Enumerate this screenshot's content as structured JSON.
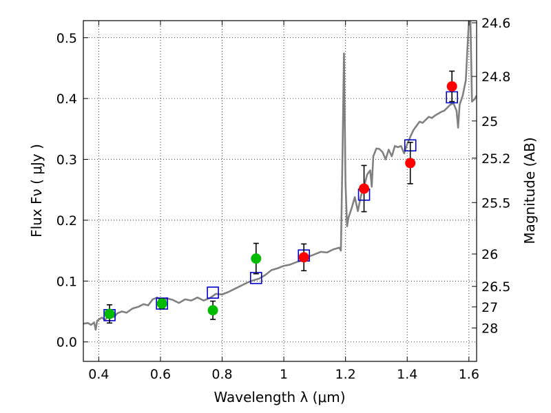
{
  "chart_data": {
    "type": "scatter",
    "title": "",
    "xlabel": "Wavelength  λ (μm)",
    "ylabel": "Flux  Fν  ( μJy )",
    "y2label": "Magnitude (AB)",
    "xlim": [
      0.35,
      1.625
    ],
    "ylim": [
      -0.032,
      0.528
    ],
    "grid": true,
    "legend": "none",
    "xticks": [
      {
        "value": 0.4,
        "label": "0.4"
      },
      {
        "value": 0.6,
        "label": "0.6"
      },
      {
        "value": 0.8,
        "label": "0.8"
      },
      {
        "value": 1.0,
        "label": "1"
      },
      {
        "value": 1.2,
        "label": "1.2"
      },
      {
        "value": 1.4,
        "label": "1.4"
      },
      {
        "value": 1.6,
        "label": "1.6"
      }
    ],
    "yticks": [
      {
        "value": 0.0,
        "label": "0.0"
      },
      {
        "value": 0.1,
        "label": "0.1"
      },
      {
        "value": 0.2,
        "label": "0.2"
      },
      {
        "value": 0.3,
        "label": "0.3"
      },
      {
        "value": 0.4,
        "label": "0.4"
      },
      {
        "value": 0.5,
        "label": "0.5"
      }
    ],
    "y2ticks": [
      {
        "label": "24.6",
        "flux": 0.5245
      },
      {
        "label": "24.8",
        "flux": 0.4363
      },
      {
        "label": "25",
        "flux": 0.3631
      },
      {
        "label": "25.2",
        "flux": 0.302
      },
      {
        "label": "25.5",
        "flux": 0.229
      },
      {
        "label": "26",
        "flux": 0.1445
      },
      {
        "label": "26.5",
        "flux": 0.0912
      },
      {
        "label": "27",
        "flux": 0.0575
      },
      {
        "label": "28",
        "flux": 0.0229
      }
    ],
    "colors": {
      "spectrum": "#808080",
      "model": "#0000cc",
      "green": "#00bb00",
      "red": "#ff0000",
      "errorbar": "#000000",
      "grid": "#000000"
    },
    "series": [
      {
        "type": "line",
        "points": [
          [
            0.35,
            0.03
          ],
          [
            0.365,
            0.031
          ],
          [
            0.375,
            0.028
          ],
          [
            0.385,
            0.032
          ],
          [
            0.39,
            0.02
          ],
          [
            0.395,
            0.035
          ],
          [
            0.41,
            0.04
          ],
          [
            0.42,
            0.036
          ],
          [
            0.43,
            0.042
          ],
          [
            0.44,
            0.045
          ],
          [
            0.45,
            0.041
          ],
          [
            0.46,
            0.047
          ],
          [
            0.475,
            0.05
          ],
          [
            0.49,
            0.048
          ],
          [
            0.51,
            0.055
          ],
          [
            0.53,
            0.058
          ],
          [
            0.545,
            0.062
          ],
          [
            0.56,
            0.06
          ],
          [
            0.575,
            0.07
          ],
          [
            0.59,
            0.073
          ],
          [
            0.61,
            0.063
          ],
          [
            0.62,
            0.072
          ],
          [
            0.64,
            0.069
          ],
          [
            0.66,
            0.064
          ],
          [
            0.68,
            0.07
          ],
          [
            0.7,
            0.068
          ],
          [
            0.72,
            0.073
          ],
          [
            0.74,
            0.068
          ],
          [
            0.76,
            0.072
          ],
          [
            0.78,
            0.079
          ],
          [
            0.8,
            0.078
          ],
          [
            0.82,
            0.082
          ],
          [
            0.84,
            0.087
          ],
          [
            0.86,
            0.092
          ],
          [
            0.88,
            0.097
          ],
          [
            0.9,
            0.101
          ],
          [
            0.92,
            0.104
          ],
          [
            0.94,
            0.11
          ],
          [
            0.96,
            0.118
          ],
          [
            0.98,
            0.121
          ],
          [
            1.0,
            0.125
          ],
          [
            1.02,
            0.127
          ],
          [
            1.04,
            0.131
          ],
          [
            1.06,
            0.134
          ],
          [
            1.08,
            0.14
          ],
          [
            1.1,
            0.144
          ],
          [
            1.12,
            0.148
          ],
          [
            1.14,
            0.147
          ],
          [
            1.16,
            0.152
          ],
          [
            1.18,
            0.155
          ],
          [
            1.185,
            0.15
          ],
          [
            1.19,
            0.3
          ],
          [
            1.195,
            0.474
          ],
          [
            1.2,
            0.26
          ],
          [
            1.205,
            0.19
          ],
          [
            1.21,
            0.205
          ],
          [
            1.22,
            0.22
          ],
          [
            1.23,
            0.238
          ],
          [
            1.24,
            0.215
          ],
          [
            1.25,
            0.24
          ],
          [
            1.26,
            0.255
          ],
          [
            1.27,
            0.275
          ],
          [
            1.28,
            0.282
          ],
          [
            1.285,
            0.255
          ],
          [
            1.29,
            0.305
          ],
          [
            1.3,
            0.318
          ],
          [
            1.31,
            0.317
          ],
          [
            1.32,
            0.312
          ],
          [
            1.33,
            0.3
          ],
          [
            1.34,
            0.316
          ],
          [
            1.35,
            0.305
          ],
          [
            1.36,
            0.322
          ],
          [
            1.37,
            0.32
          ],
          [
            1.38,
            0.322
          ],
          [
            1.39,
            0.31
          ],
          [
            1.4,
            0.325
          ],
          [
            1.41,
            0.337
          ],
          [
            1.42,
            0.348
          ],
          [
            1.43,
            0.355
          ],
          [
            1.44,
            0.362
          ],
          [
            1.45,
            0.36
          ],
          [
            1.46,
            0.365
          ],
          [
            1.47,
            0.37
          ],
          [
            1.48,
            0.368
          ],
          [
            1.49,
            0.372
          ],
          [
            1.5,
            0.375
          ],
          [
            1.51,
            0.378
          ],
          [
            1.52,
            0.38
          ],
          [
            1.53,
            0.385
          ],
          [
            1.54,
            0.39
          ],
          [
            1.55,
            0.392
          ],
          [
            1.56,
            0.38
          ],
          [
            1.565,
            0.352
          ],
          [
            1.57,
            0.39
          ],
          [
            1.58,
            0.405
          ],
          [
            1.59,
            0.43
          ],
          [
            1.595,
            0.48
          ],
          [
            1.6,
            0.528
          ],
          [
            1.605,
            0.528
          ],
          [
            1.61,
            0.395
          ],
          [
            1.62,
            0.4
          ],
          [
            1.625,
            0.405
          ]
        ]
      },
      {
        "type": "square",
        "points": [
          [
            0.435,
            0.044
          ],
          [
            0.605,
            0.063
          ],
          [
            0.77,
            0.081
          ],
          [
            0.91,
            0.105
          ],
          [
            1.065,
            0.142
          ],
          [
            1.26,
            0.242
          ],
          [
            1.41,
            0.323
          ],
          [
            1.545,
            0.402
          ]
        ]
      },
      {
        "type": "circle",
        "color": "green",
        "points": [
          {
            "x": 0.435,
            "y": 0.046,
            "err": 0.015
          },
          {
            "x": 0.605,
            "y": 0.063,
            "err": 0.008
          },
          {
            "x": 0.77,
            "y": 0.052,
            "err": 0.015
          },
          {
            "x": 0.91,
            "y": 0.137,
            "err": 0.025
          }
        ]
      },
      {
        "type": "circle",
        "color": "red",
        "points": [
          {
            "x": 1.065,
            "y": 0.139,
            "err": 0.022
          },
          {
            "x": 1.26,
            "y": 0.252,
            "err": 0.038
          },
          {
            "x": 1.41,
            "y": 0.294,
            "err": 0.034
          },
          {
            "x": 1.545,
            "y": 0.42,
            "err": 0.025
          }
        ]
      }
    ]
  }
}
